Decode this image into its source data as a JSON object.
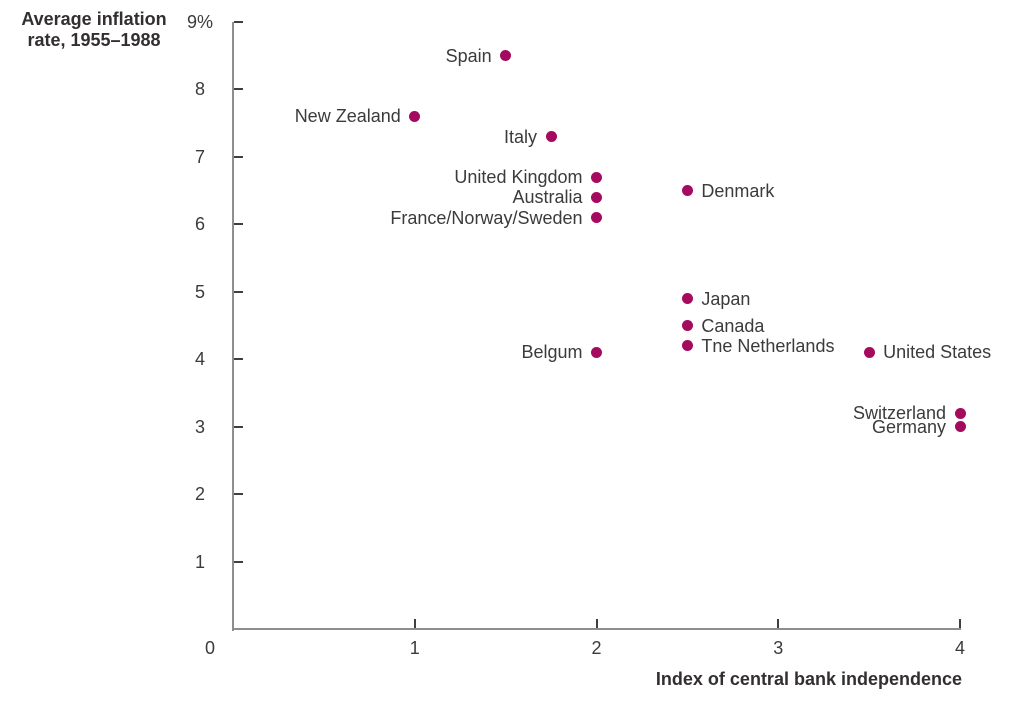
{
  "colors": {
    "dot": "#A40A5E",
    "axis_line": "#8e8e8e",
    "tick_mark": "#3f3f3f",
    "tick_text": "#3b3b3b",
    "title_text": "#332f30"
  },
  "chart_data": {
    "type": "scatter",
    "ylabel_line1": "Average inflation",
    "ylabel_line2": "rate, 1955–1988",
    "xlabel": "Index of central bank independence",
    "xlim": [
      0,
      4
    ],
    "ylim": [
      0,
      9
    ],
    "grid": false,
    "legend": false,
    "origin_label": "0",
    "x_ticks": [
      {
        "value": 1,
        "label": "1"
      },
      {
        "value": 2,
        "label": "2"
      },
      {
        "value": 3,
        "label": "3"
      },
      {
        "value": 4,
        "label": "4"
      }
    ],
    "y_ticks": [
      {
        "value": 1,
        "label": "1"
      },
      {
        "value": 2,
        "label": "2"
      },
      {
        "value": 3,
        "label": "3"
      },
      {
        "value": 4,
        "label": "4"
      },
      {
        "value": 5,
        "label": "5"
      },
      {
        "value": 6,
        "label": "6"
      },
      {
        "value": 7,
        "label": "7"
      },
      {
        "value": 8,
        "label": "8"
      },
      {
        "value": 9,
        "label": "9%"
      }
    ],
    "points": [
      {
        "label": "Spain",
        "x": 1.5,
        "y": 8.5,
        "label_side": "left"
      },
      {
        "label": "New Zealand",
        "x": 1.0,
        "y": 7.6,
        "label_side": "left"
      },
      {
        "label": "Italy",
        "x": 1.75,
        "y": 7.3,
        "label_side": "left"
      },
      {
        "label": "United Kingdom",
        "x": 2.0,
        "y": 6.7,
        "label_side": "left"
      },
      {
        "label": "Australia",
        "x": 2.0,
        "y": 6.4,
        "label_side": "left"
      },
      {
        "label": "France/Norway/Sweden",
        "x": 2.0,
        "y": 6.1,
        "label_side": "left"
      },
      {
        "label": "Denmark",
        "x": 2.5,
        "y": 6.5,
        "label_side": "right"
      },
      {
        "label": "Japan",
        "x": 2.5,
        "y": 4.9,
        "label_side": "right"
      },
      {
        "label": "Canada",
        "x": 2.5,
        "y": 4.5,
        "label_side": "right"
      },
      {
        "label": "Tne Netherlands",
        "x": 2.5,
        "y": 4.2,
        "label_side": "right"
      },
      {
        "label": "Belgum",
        "x": 2.0,
        "y": 4.1,
        "label_side": "left"
      },
      {
        "label": "United States",
        "x": 3.5,
        "y": 4.1,
        "label_side": "right"
      },
      {
        "label": "Switzerland",
        "x": 4.0,
        "y": 3.2,
        "label_side": "left"
      },
      {
        "label": "Germany",
        "x": 4.0,
        "y": 3.0,
        "label_side": "left"
      }
    ]
  }
}
